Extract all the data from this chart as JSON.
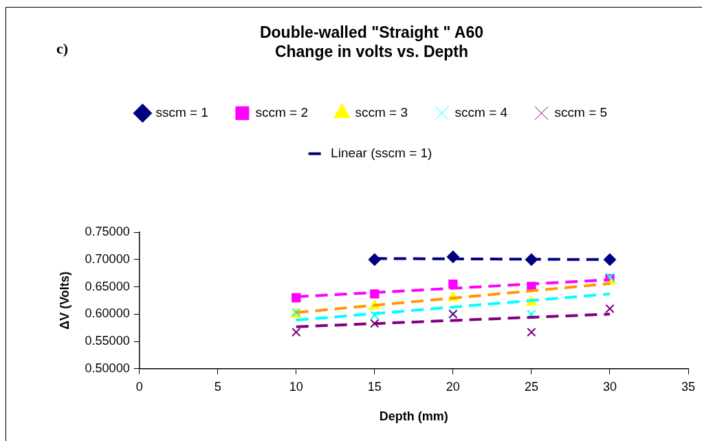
{
  "chart_data": {
    "type": "scatter",
    "title": "Double-walled \"Straight \" A60\nChange in volts vs. Depth",
    "xlabel": "Depth (mm)",
    "ylabel": "ΔV (Volts)",
    "annotations": [
      "c)"
    ],
    "xlim": [
      0,
      35
    ],
    "xticks": [
      0,
      5,
      10,
      15,
      20,
      25,
      30,
      35
    ],
    "ylim": [
      0.5,
      0.75
    ],
    "yticks": [
      {
        "value": 0.5,
        "label": "0.50000"
      },
      {
        "value": 0.55,
        "label": "0.55000"
      },
      {
        "value": 0.6,
        "label": "0.60000"
      },
      {
        "value": 0.65,
        "label": "0.65000"
      },
      {
        "value": 0.7,
        "label": "0.70000"
      },
      {
        "value": 0.75,
        "label": "0.75000"
      }
    ],
    "grid": false,
    "legend": "top",
    "series": [
      {
        "name": "sscm = 1",
        "color": "#000080",
        "marker": "diamond",
        "x": [
          15,
          20,
          25,
          30
        ],
        "values": [
          0.7,
          0.705,
          0.7,
          0.7
        ]
      },
      {
        "name": "sccm = 2",
        "color": "#ff00ff",
        "marker": "square",
        "x": [
          10,
          15,
          20,
          25,
          30
        ],
        "values": [
          0.63,
          0.637,
          0.655,
          0.651,
          0.665
        ]
      },
      {
        "name": "sccm = 3",
        "color": "#ffff00",
        "marker": "triangle",
        "x": [
          10,
          15,
          20,
          25,
          30
        ],
        "values": [
          0.6,
          0.615,
          0.63,
          0.622,
          0.66
        ]
      },
      {
        "name": "sccm = 4",
        "color": "#00ffff",
        "marker": "cross",
        "x": [
          10,
          15,
          20,
          25,
          30
        ],
        "values": [
          0.603,
          0.598,
          0.601,
          0.6,
          0.668
        ]
      },
      {
        "name": "sccm = 5",
        "color": "#800080",
        "marker": "cross",
        "x": [
          10,
          15,
          20,
          25,
          30
        ],
        "values": [
          0.567,
          0.583,
          0.6,
          0.567,
          0.61
        ]
      },
      {
        "name": "Linear (sscm = 1)",
        "type": "line",
        "color": "#000080",
        "marker": "none",
        "line_style": "dashed",
        "x": [
          15,
          30
        ],
        "values": [
          0.702,
          0.7
        ]
      },
      {
        "type": "line",
        "color": "#ff00ff",
        "marker": "none",
        "line_style": "dashed",
        "x": [
          10,
          30
        ],
        "values": [
          0.632,
          0.663
        ]
      },
      {
        "type": "line",
        "color": "#ff9900",
        "marker": "none",
        "line_style": "dashed",
        "x": [
          10,
          30
        ],
        "values": [
          0.603,
          0.656
        ]
      },
      {
        "type": "line",
        "color": "#00ffff",
        "marker": "none",
        "line_style": "dashed",
        "x": [
          10,
          30
        ],
        "values": [
          0.589,
          0.637
        ]
      },
      {
        "type": "line",
        "color": "#800080",
        "marker": "none",
        "line_style": "dashed",
        "x": [
          10,
          30
        ],
        "values": [
          0.577,
          0.6
        ]
      }
    ]
  }
}
